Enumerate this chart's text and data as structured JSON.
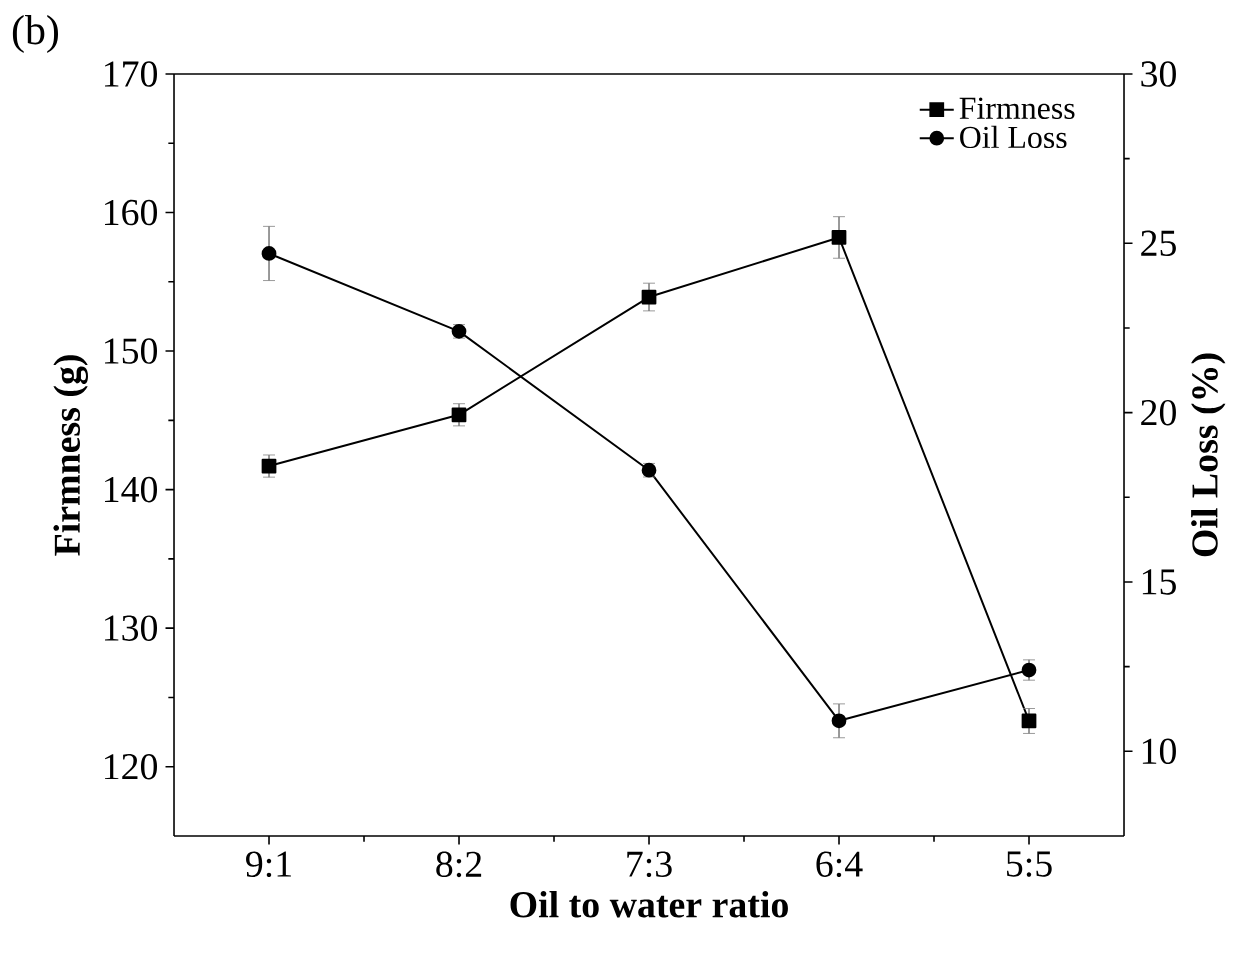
{
  "chart_data": {
    "type": "line",
    "xlabel": "Oil to water ratio",
    "ylabel": "Firmness  (g)",
    "y2label": "Oil Loss  (%)",
    "annotations": [
      "(b)"
    ],
    "categories": [
      "9:1",
      "8:2",
      "7:3",
      "6:4",
      "5:5"
    ],
    "series": [
      {
        "name": "Firmness",
        "color": "#000000",
        "marker": "square",
        "values": [
          141.7,
          145.4,
          153.9,
          158.2,
          123.3
        ],
        "errors": [
          0.8,
          0.8,
          1.0,
          1.5,
          0.9
        ]
      },
      {
        "name": "Oil Loss",
        "color": "#000000",
        "marker": "circle",
        "axis": "y2",
        "values": [
          24.7,
          22.4,
          18.3,
          10.9,
          12.4
        ],
        "errors": [
          0.8,
          0.2,
          0.2,
          0.5,
          0.3
        ]
      }
    ],
    "ylim": [
      115,
      170
    ],
    "yticks": [
      120,
      130,
      140,
      150,
      160,
      170
    ],
    "y2lim": [
      7.5,
      30
    ],
    "y2ticks": [
      10,
      15,
      20,
      25,
      30
    ],
    "legend": "top right",
    "grid": false,
    "line_style": "solid"
  }
}
